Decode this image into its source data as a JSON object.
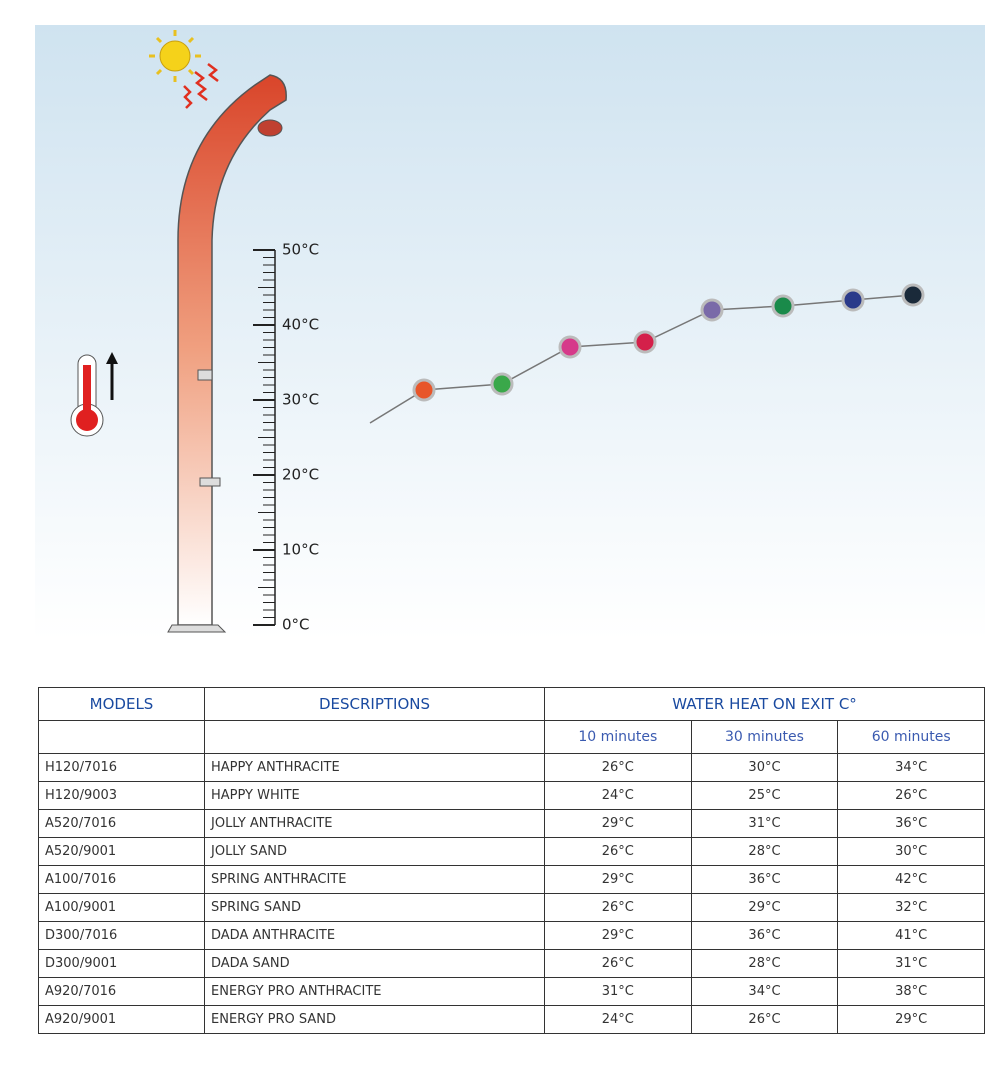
{
  "scale": {
    "labels": [
      "50°C",
      "40°C",
      "30°C",
      "20°C",
      "10°C",
      "0°C"
    ]
  },
  "table": {
    "header": {
      "models": "MODELS",
      "descriptions": "DESCRIPTIONS",
      "water_heat": "WATER HEAT ON EXIT C°"
    },
    "subheader": [
      "10 minutes",
      "30 minutes",
      "60 minutes"
    ],
    "rows": [
      [
        "H120/7016",
        "HAPPY ANTHRACITE",
        "26°C",
        "30°C",
        "34°C"
      ],
      [
        "H120/9003",
        "HAPPY WHITE",
        "24°C",
        "25°C",
        "26°C"
      ],
      [
        "A520/7016",
        "JOLLY ANTHRACITE",
        "29°C",
        "31°C",
        "36°C"
      ],
      [
        "A520/9001",
        "JOLLY SAND",
        "26°C",
        "28°C",
        "30°C"
      ],
      [
        "A100/7016",
        "SPRING ANTHRACITE",
        "29°C",
        "36°C",
        "42°C"
      ],
      [
        "A100/9001",
        "SPRING SAND",
        "26°C",
        "29°C",
        "32°C"
      ],
      [
        "D300/7016",
        "DADA ANTHRACITE",
        "29°C",
        "36°C",
        "41°C"
      ],
      [
        "D300/9001",
        "DADA SAND",
        "26°C",
        "28°C",
        "31°C"
      ],
      [
        "A920/7016",
        "ENERGY PRO ANTHRACITE",
        "31°C",
        "34°C",
        "38°C"
      ],
      [
        "A920/9001",
        "ENERGY PRO SAND",
        "24°C",
        "26°C",
        "29°C"
      ]
    ]
  }
}
